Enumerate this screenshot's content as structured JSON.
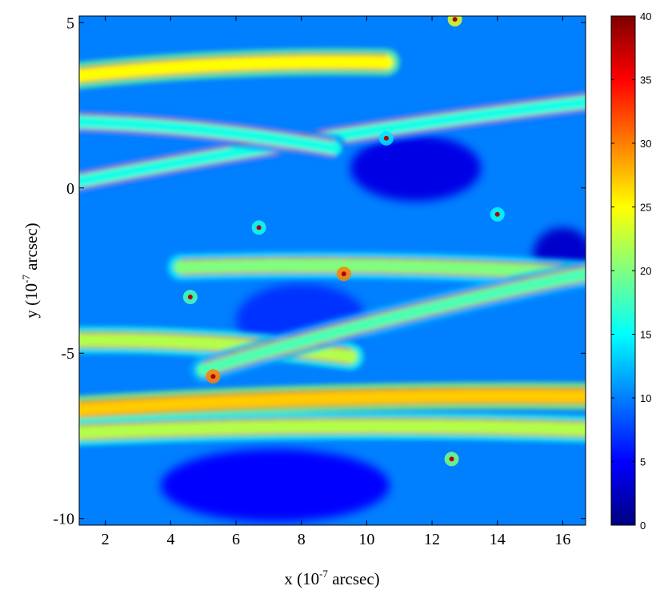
{
  "chart_data": {
    "type": "heatmap",
    "title": "",
    "xlabel": {
      "prefix": "x (10",
      "exponent": "-7",
      "suffix": " arcsec)"
    },
    "ylabel": {
      "prefix": "y (10",
      "exponent": "-7",
      "suffix": " arcsec)"
    },
    "xlim": [
      1.2,
      16.7
    ],
    "ylim": [
      -10.2,
      5.2
    ],
    "x_ticks": [
      2,
      4,
      6,
      8,
      10,
      12,
      14,
      16
    ],
    "x_tick_labels": [
      "2",
      "4",
      "6",
      "8",
      "10",
      "12",
      "14",
      "16"
    ],
    "y_ticks": [
      5,
      0,
      -5,
      -10
    ],
    "y_tick_labels": [
      "5",
      "0",
      "-5",
      "-10"
    ],
    "colorbar": {
      "range": [
        0,
        40
      ],
      "ticks": [
        0,
        5,
        10,
        15,
        20,
        25,
        30,
        35,
        40
      ],
      "tick_labels": [
        "0",
        "5",
        "10",
        "15",
        "20",
        "25",
        "30",
        "35",
        "40"
      ],
      "colormap": "jet",
      "colormap_stops": [
        "#00007f",
        "#0000ff",
        "#007fff",
        "#00ffff",
        "#7fff7f",
        "#ffff00",
        "#ff7f00",
        "#ff0000",
        "#7f0000"
      ]
    },
    "background_value": 10,
    "caustic_bands": [
      {
        "start": [
          1.2,
          3.4
        ],
        "end": [
          10.6,
          3.8
        ],
        "value": 25
      },
      {
        "start": [
          1.2,
          -6.7
        ],
        "end": [
          16.7,
          -6.3
        ],
        "value": 27
      },
      {
        "start": [
          1.2,
          -7.4
        ],
        "end": [
          16.7,
          -7.3
        ],
        "value": 22
      },
      {
        "start": [
          1.2,
          -4.6
        ],
        "end": [
          9.5,
          -5.1
        ],
        "value": 22
      },
      {
        "start": [
          4.3,
          -2.4
        ],
        "end": [
          16.7,
          -2.6
        ],
        "value": 20
      },
      {
        "start": [
          1.2,
          0.2
        ],
        "end": [
          16.7,
          2.6
        ],
        "value": 16
      },
      {
        "start": [
          5.0,
          -5.5
        ],
        "end": [
          16.7,
          -2.6
        ],
        "value": 18
      },
      {
        "start": [
          1.2,
          2.0
        ],
        "end": [
          9.0,
          1.2
        ],
        "value": 16
      }
    ],
    "caustic_cusps": [
      {
        "x": 12.7,
        "y": 5.1,
        "value": 24
      },
      {
        "x": 5.3,
        "y": -5.7,
        "value": 30
      },
      {
        "x": 12.6,
        "y": -8.2,
        "value": 20
      },
      {
        "x": 4.6,
        "y": -3.3,
        "value": 18
      },
      {
        "x": 9.3,
        "y": -2.6,
        "value": 30
      },
      {
        "x": 10.6,
        "y": 1.5,
        "value": 14
      },
      {
        "x": 14.0,
        "y": -0.8,
        "value": 15
      },
      {
        "x": 6.7,
        "y": -1.2,
        "value": 16
      }
    ],
    "low_regions": [
      {
        "center": [
          7.2,
          -9.0
        ],
        "radius": [
          3.5,
          1.1
        ],
        "value": 5
      },
      {
        "center": [
          11.5,
          0.6
        ],
        "radius": [
          2.0,
          1.0
        ],
        "value": 4
      },
      {
        "center": [
          16.0,
          -2.0
        ],
        "radius": [
          0.9,
          0.8
        ],
        "value": 3
      },
      {
        "center": [
          8.0,
          -4.0
        ],
        "radius": [
          2.0,
          1.1
        ],
        "value": 7
      }
    ]
  }
}
